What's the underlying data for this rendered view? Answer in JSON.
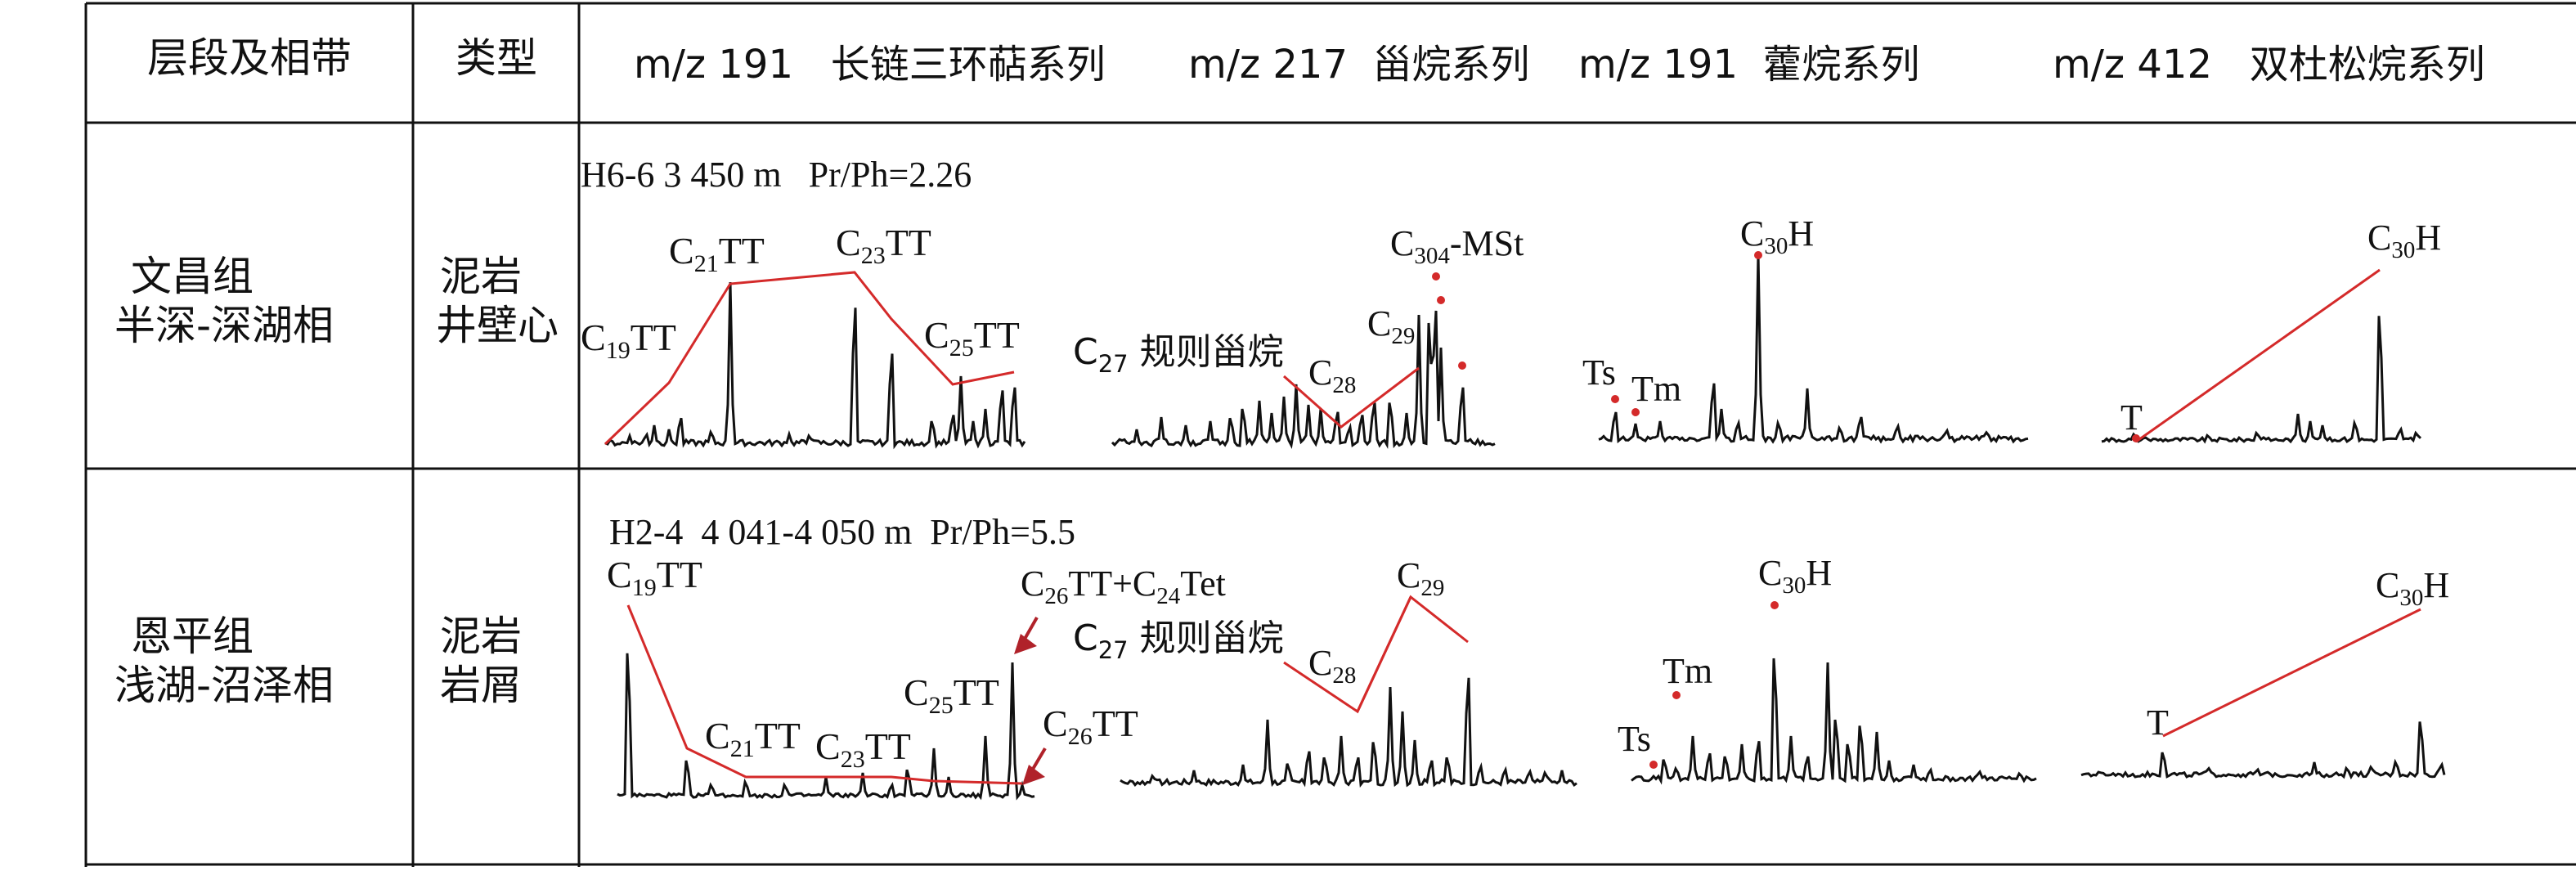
{
  "header": {
    "col_layer": "层段及相带",
    "col_type": "类型",
    "series_1": "m/z 191   长链三环萜系列",
    "series_2": "m/z 217  甾烷系列",
    "series_3": "m/z 191  藿烷系列",
    "series_4": "m/z 412   双杜松烷系列"
  },
  "rows": [
    {
      "layer_line1": "文昌组",
      "layer_line2": "半深-深湖相",
      "type_line1": "泥岩",
      "type_line2": "井壁心",
      "sample": "H6-6 3 450 m   Pr/Ph=2.26",
      "labels": {
        "c19tt": "C19TT",
        "c21tt": "C21TT",
        "c23tt": "C23TT",
        "c25tt": "C25TT",
        "c27": "C27 规则甾烷",
        "c28": "C28",
        "c29": "C29",
        "c30mst": "C304-MSt",
        "ts": "Ts",
        "tm": "Tm",
        "c30h_hop": "C30H",
        "t_bic": "T",
        "c30h_bic": "C30H"
      }
    },
    {
      "layer_line1": "恩平组",
      "layer_line2": "浅湖-沼泽相",
      "type_line1": "泥岩",
      "type_line2": "岩屑",
      "sample": "H2-4  4 041-4 050 m  Pr/Ph=5.5",
      "labels": {
        "c19tt": "C19TT",
        "c21tt": "C21TT",
        "c23tt": "C23TT",
        "c25tt": "C25TT",
        "c26c24": "C26TT+C24Tet",
        "c26tt": "C26TT",
        "c27": "C27 规则甾烷",
        "c28": "C28",
        "c29": "C29",
        "ts": "Ts",
        "tm": "Tm",
        "c30h_hop": "C30H",
        "t_bic": "T",
        "c30h_bic": "C30H"
      }
    }
  ],
  "colors": {
    "line": "#d42a2a",
    "arrow": "#b0222a",
    "trace": "#111111",
    "grid": "#111111"
  }
}
